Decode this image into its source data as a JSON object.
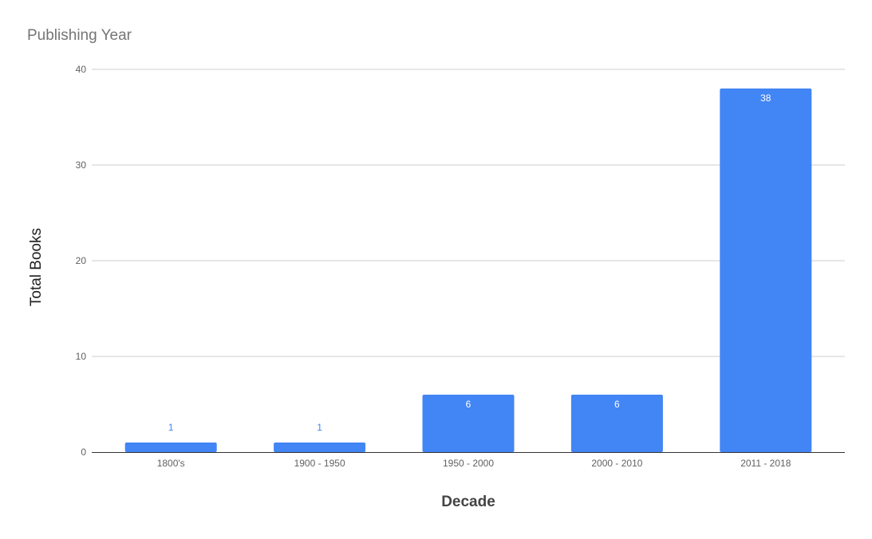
{
  "chart_data": {
    "type": "bar",
    "title": "Publishing Year",
    "xlabel": "Decade",
    "ylabel": "Total Books",
    "categories": [
      "1800's",
      "1900 - 1950",
      "1950 - 2000",
      "2000 - 2010",
      "2011 - 2018"
    ],
    "values": [
      1,
      1,
      6,
      6,
      38
    ],
    "data_labels": [
      "1",
      "1",
      "6",
      "6",
      "38"
    ],
    "ylim": [
      0,
      40
    ],
    "yticks": [
      0,
      10,
      20,
      30,
      40
    ],
    "ytick_labels": [
      "0",
      "10",
      "20",
      "30",
      "40"
    ],
    "grid": true,
    "legend": "none",
    "bar_color": "#4285f4",
    "label_inside_color": "#ffffff",
    "label_outside_color": "#4285f4"
  }
}
